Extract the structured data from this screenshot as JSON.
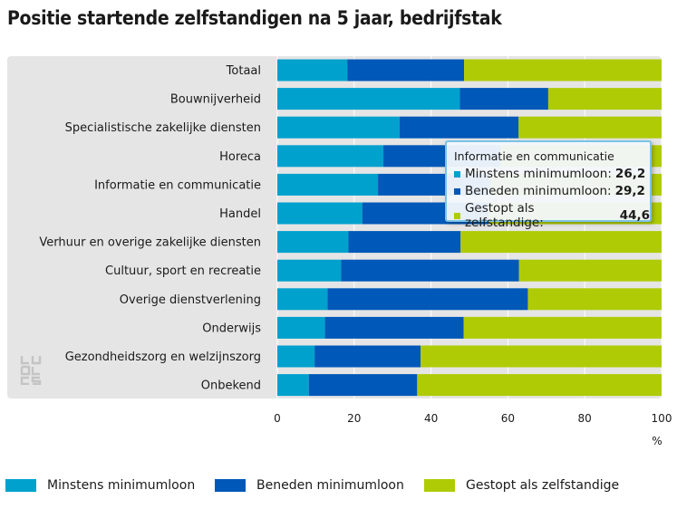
{
  "title": "Positie startende zelfstandigen na 5 jaar, bedrijfstak",
  "colors": {
    "minimum": "#00a1cd",
    "beneden": "#0058b8",
    "gestopt": "#afcb05",
    "panel": "#e5e5e5",
    "grid": "#ffffff",
    "logo": "#c4c4c4"
  },
  "tooltip": {
    "title": "Informatie en communicatie",
    "rows": [
      {
        "label": "Minstens minimumloon:",
        "value": "26,2"
      },
      {
        "label": "Beneden minimumloon:",
        "value": "29,2"
      },
      {
        "label": "Gestopt als zelfstandige:",
        "value": "44,6"
      }
    ]
  },
  "logo_icon": "cbs-logo-icon",
  "chart_data": {
    "type": "bar",
    "orientation": "horizontal",
    "stacked": true,
    "title": "Positie startende zelfstandigen na 5 jaar, bedrijfstak",
    "xunit": "%",
    "xlim": [
      0,
      100
    ],
    "xticks": [
      0,
      20,
      40,
      60,
      80,
      100
    ],
    "grid": true,
    "legend_position": "bottom",
    "categories": [
      "Totaal",
      "Bouwnijverheid",
      "Specialistische zakelijke diensten",
      "Horeca",
      "Informatie en communicatie",
      "Handel",
      "Verhuur en overige zakelijke diensten",
      "Cultuur, sport en recreatie",
      "Overige dienstverlening",
      "Onderwijs",
      "Gezondheidszorg en welzijnszorg",
      "Onbekend"
    ],
    "series": [
      {
        "name": "Minstens minimumloon",
        "values": [
          18.2,
          47.5,
          31.8,
          27.6,
          26.2,
          22.1,
          18.5,
          16.6,
          13.1,
          12.4,
          9.7,
          8.2
        ]
      },
      {
        "name": "Beneden minimumloon",
        "values": [
          30.4,
          23.0,
          31.0,
          30.4,
          29.2,
          32.9,
          29.2,
          46.3,
          52.1,
          36.1,
          27.6,
          28.2
        ]
      },
      {
        "name": "Gestopt als zelfstandige",
        "values": [
          51.4,
          29.5,
          37.2,
          42.0,
          44.6,
          45.0,
          52.3,
          37.1,
          34.8,
          51.5,
          62.7,
          63.6
        ]
      }
    ]
  }
}
